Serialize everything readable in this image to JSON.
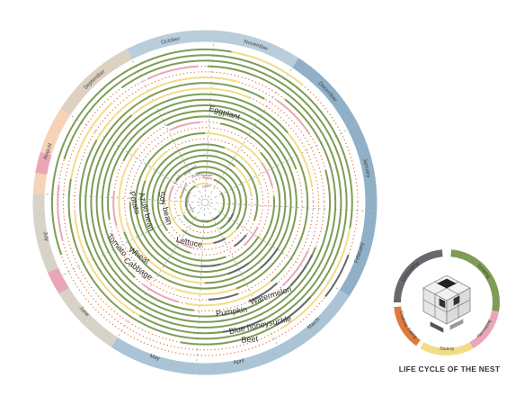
{
  "colors": {
    "month_band": "#b9cddb",
    "month_band_dark": "#8fb0c7",
    "spring_band": "#aac4d6",
    "summer_band": "#d8d3c8",
    "august_band": "#f6d3b6",
    "september_band": "#ddd1c2",
    "growing": "#7e9c55",
    "gray": "#666a6e",
    "pink": "#e9a6b7",
    "yellow": "#f3dc86",
    "dots": "#e07a3c",
    "grid": "#9a9a9a",
    "label": "#444444"
  },
  "months": [
    "January",
    "February",
    "March",
    "April",
    "May",
    "June",
    "July",
    "August",
    "September",
    "October",
    "November",
    "December"
  ],
  "crops": [
    "Eggplant",
    "Lettuce",
    "Soy bean",
    "Azuki bean",
    "Potato",
    "Tomato",
    "Wheat",
    "Cabbage",
    "Pumpkin",
    "Watermelon",
    "Blue honeysuckle",
    "Beet"
  ],
  "inner_small_labels": [
    "Radish",
    "Komatsuna",
    "Cucumber",
    "Strawberry",
    "Onion",
    "Spinach",
    "Carrot",
    "Garlic"
  ],
  "center_label": "Crop",
  "lifecycle": {
    "stages": [
      "Growing",
      "Harvesting",
      "Storing",
      "Cooking, Eating",
      "Composting"
    ],
    "caption": "LIFE CYCLE OF THE NEST"
  }
}
